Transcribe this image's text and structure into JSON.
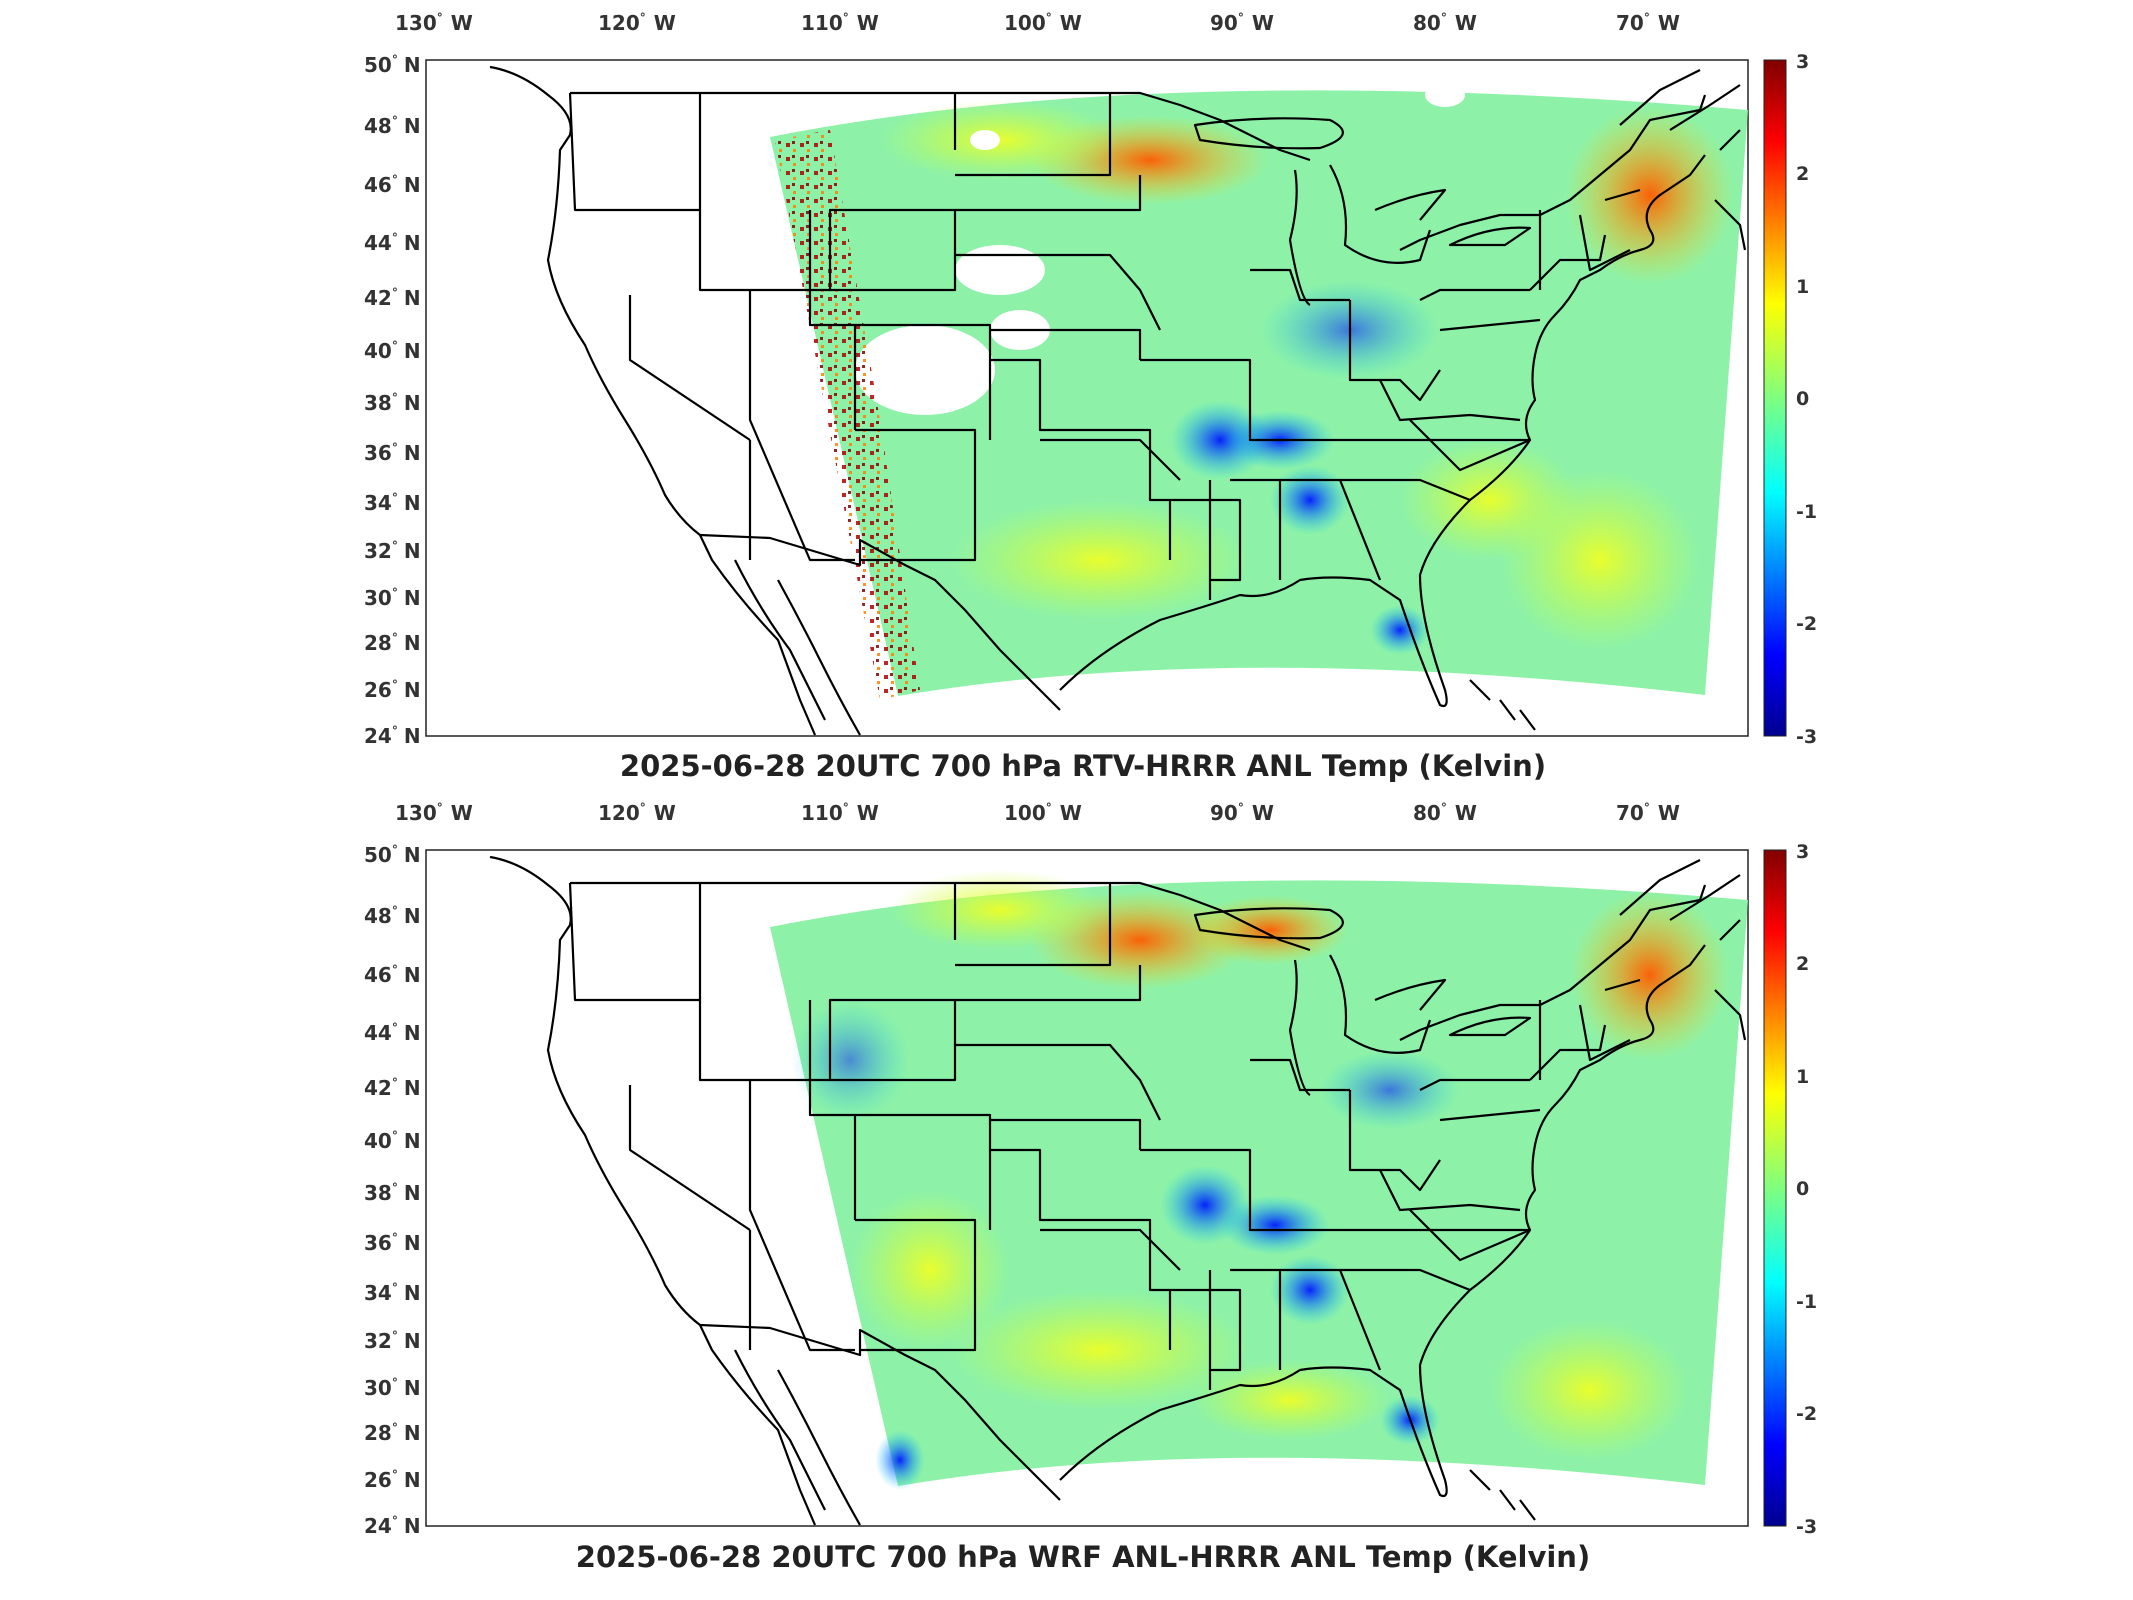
{
  "panels": [
    {
      "title": "2025-06-28 20UTC 700 hPa RTV-HRRR ANL Temp (Kelvin)",
      "lon_labels": [
        "130",
        "120",
        "110",
        "100",
        "90",
        "80",
        "70"
      ],
      "lon_hemi": "W",
      "lat_labels": [
        "24",
        "26",
        "28",
        "30",
        "32",
        "34",
        "36",
        "38",
        "40",
        "42",
        "44",
        "46",
        "48",
        "50"
      ],
      "lat_hemi": "N",
      "degree_symbol": "°",
      "colorbar": {
        "ticks": [
          "3",
          "2",
          "1",
          "0",
          "-1",
          "-2",
          "-3"
        ],
        "min": -3,
        "max": 3,
        "colormap": "jet"
      }
    },
    {
      "title": "2025-06-28 20UTC 700 hPa WRF ANL-HRRR ANL Temp (Kelvin)",
      "lon_labels": [
        "130",
        "120",
        "110",
        "100",
        "90",
        "80",
        "70"
      ],
      "lon_hemi": "W",
      "lat_labels": [
        "24",
        "26",
        "28",
        "30",
        "32",
        "34",
        "36",
        "38",
        "40",
        "42",
        "44",
        "46",
        "48",
        "50"
      ],
      "lat_hemi": "N",
      "degree_symbol": "°",
      "colorbar": {
        "ticks": [
          "3",
          "2",
          "1",
          "0",
          "-1",
          "-2",
          "-3"
        ],
        "min": -3,
        "max": 3,
        "colormap": "jet"
      }
    }
  ],
  "colors": {
    "jet_low": "#00008f",
    "jet_mid": "#7fff7f",
    "jet_high": "#800000",
    "boundary": "#000000"
  }
}
